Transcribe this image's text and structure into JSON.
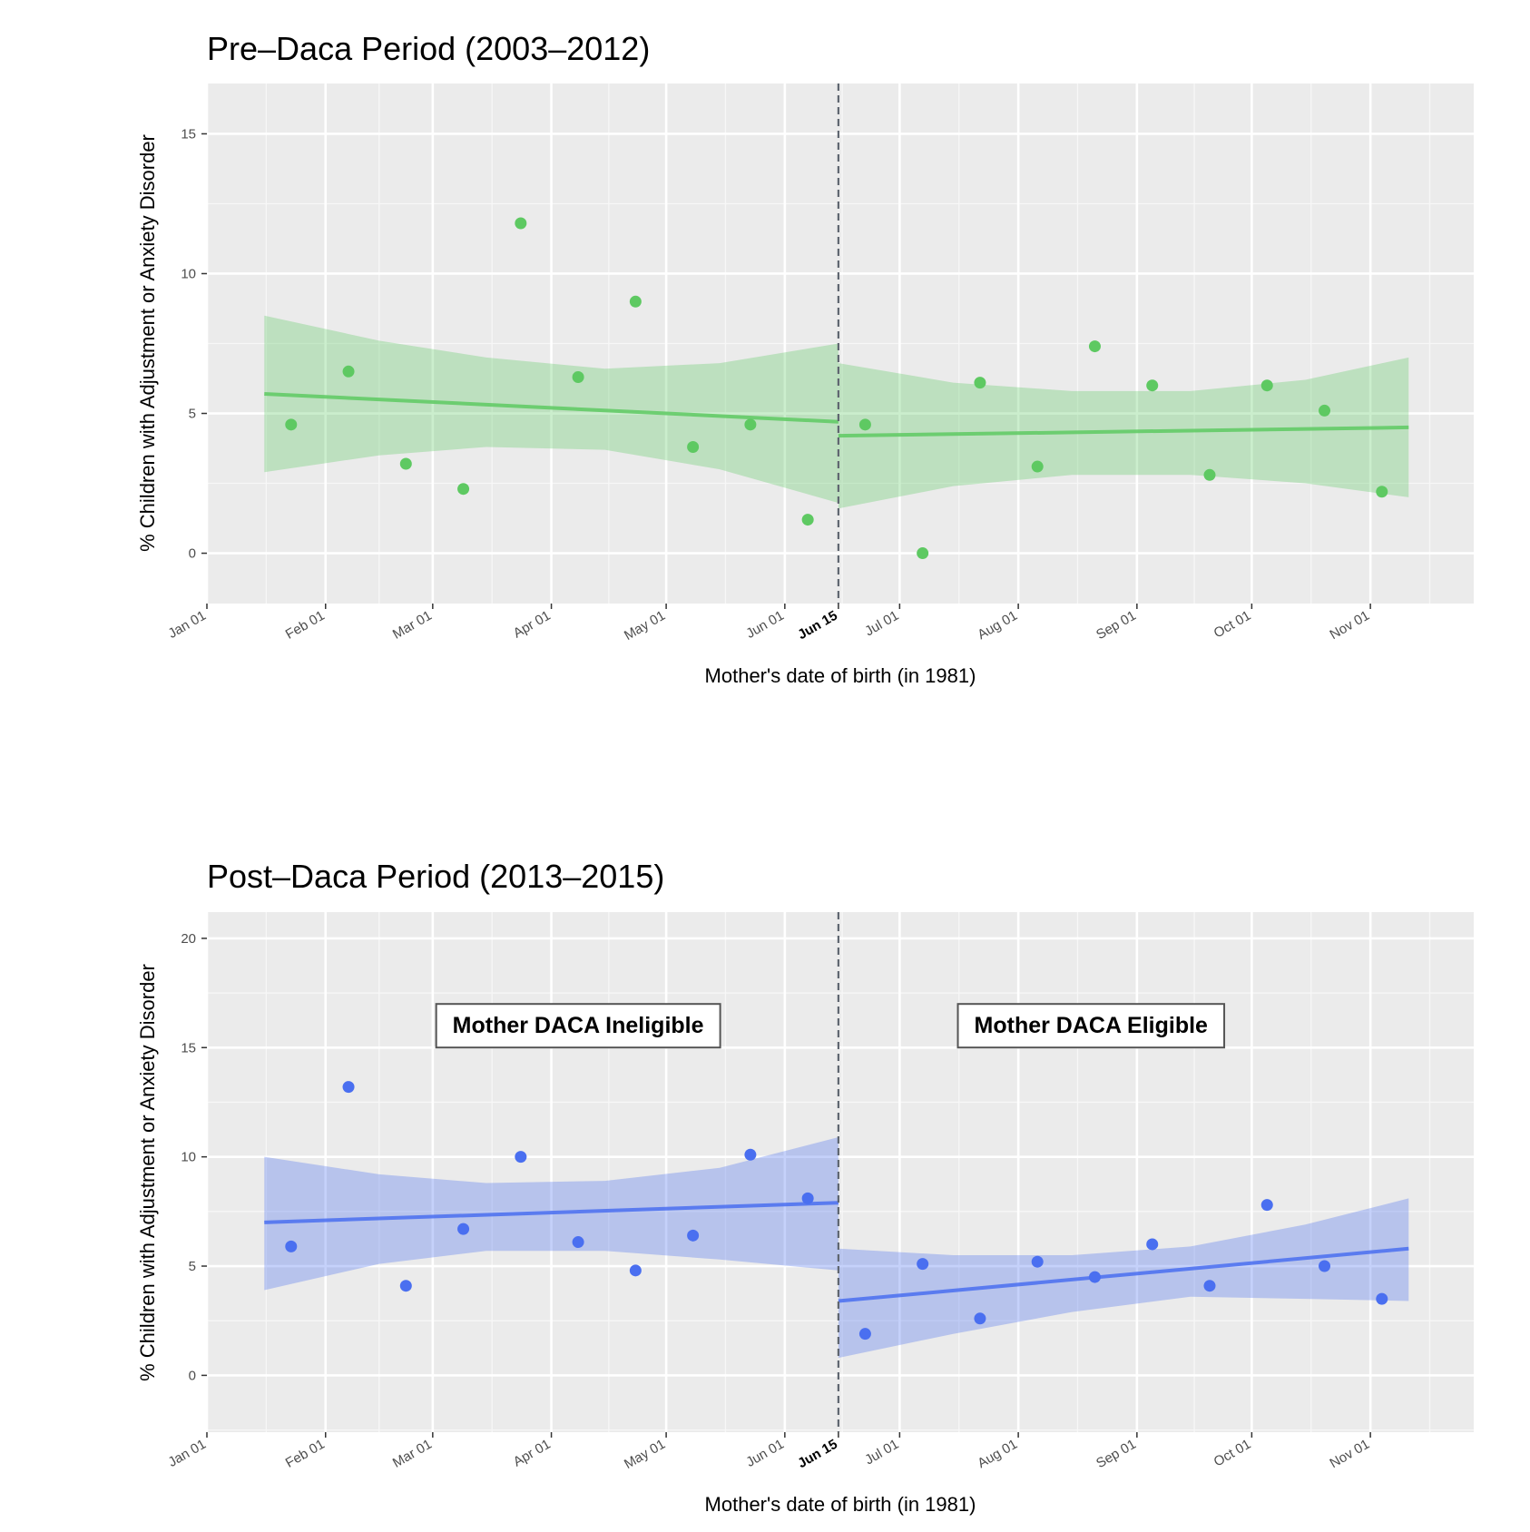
{
  "chart_data": [
    {
      "type": "scatter",
      "title": "Pre–Daca Period  (2003–2012)",
      "xlabel": "Mother's date of birth (in 1981)",
      "ylabel": "% Children with Adjustment or Anxiety Disorder",
      "ylim": [
        -1.8,
        16.8
      ],
      "yticks": [
        0,
        5,
        10,
        15
      ],
      "xlim": [
        "1981-01-01",
        "1981-11-28"
      ],
      "xticks": [
        {
          "date": "1981-01-01",
          "label": "Jan 01"
        },
        {
          "date": "1981-02-01",
          "label": "Feb 01"
        },
        {
          "date": "1981-03-01",
          "label": "Mar 01"
        },
        {
          "date": "1981-04-01",
          "label": "Apr 01"
        },
        {
          "date": "1981-05-01",
          "label": "May 01"
        },
        {
          "date": "1981-06-01",
          "label": "Jun 01"
        },
        {
          "date": "1981-06-15",
          "label": "Jun 15",
          "bold": true
        },
        {
          "date": "1981-07-01",
          "label": "Jul 01"
        },
        {
          "date": "1981-08-01",
          "label": "Aug 01"
        },
        {
          "date": "1981-09-01",
          "label": "Sep 01"
        },
        {
          "date": "1981-10-01",
          "label": "Oct 01"
        },
        {
          "date": "1981-11-01",
          "label": "Nov 01"
        }
      ],
      "cutoff": "1981-06-15",
      "grid": true,
      "color": "#5ec962",
      "points": [
        {
          "x": "1981-01-23",
          "y": 4.6
        },
        {
          "x": "1981-02-07",
          "y": 6.5
        },
        {
          "x": "1981-02-22",
          "y": 3.2
        },
        {
          "x": "1981-03-09",
          "y": 2.3
        },
        {
          "x": "1981-03-24",
          "y": 11.8
        },
        {
          "x": "1981-04-08",
          "y": 6.3
        },
        {
          "x": "1981-04-23",
          "y": 9.0
        },
        {
          "x": "1981-05-08",
          "y": 3.8
        },
        {
          "x": "1981-05-23",
          "y": 4.6
        },
        {
          "x": "1981-06-07",
          "y": 1.2
        },
        {
          "x": "1981-06-22",
          "y": 4.6
        },
        {
          "x": "1981-07-07",
          "y": 0.0
        },
        {
          "x": "1981-07-22",
          "y": 6.1
        },
        {
          "x": "1981-08-06",
          "y": 3.1
        },
        {
          "x": "1981-08-21",
          "y": 7.4
        },
        {
          "x": "1981-09-05",
          "y": 6.0
        },
        {
          "x": "1981-09-20",
          "y": 2.8
        },
        {
          "x": "1981-10-05",
          "y": 6.0
        },
        {
          "x": "1981-10-20",
          "y": 5.1
        },
        {
          "x": "1981-11-04",
          "y": 2.2
        }
      ],
      "fits": [
        {
          "x": [
            "1981-01-16",
            "1981-06-15"
          ],
          "y": [
            5.7,
            4.7
          ],
          "band_x": [
            "1981-01-16",
            "1981-02-15",
            "1981-03-15",
            "1981-04-15",
            "1981-05-15",
            "1981-06-15"
          ],
          "band_lower": [
            2.9,
            3.5,
            3.8,
            3.7,
            3.0,
            1.8
          ],
          "band_upper": [
            8.5,
            7.6,
            7.0,
            6.6,
            6.8,
            7.5
          ]
        },
        {
          "x": [
            "1981-06-15",
            "1981-11-11"
          ],
          "y": [
            4.2,
            4.5
          ],
          "band_x": [
            "1981-06-15",
            "1981-07-15",
            "1981-08-15",
            "1981-09-15",
            "1981-10-15",
            "1981-11-11"
          ],
          "band_lower": [
            1.6,
            2.4,
            2.8,
            2.8,
            2.5,
            2.0
          ],
          "band_upper": [
            6.8,
            6.1,
            5.8,
            5.8,
            6.2,
            7.0
          ]
        }
      ]
    },
    {
      "type": "scatter",
      "title": "Post–Daca Period (2013–2015)",
      "xlabel": "Mother's date of birth (in 1981)",
      "ylabel": "% Children with Adjustment or Anxiety Disorder",
      "ylim": [
        -2.6,
        21.2
      ],
      "yticks": [
        0,
        5,
        10,
        15,
        20
      ],
      "xlim": [
        "1981-01-01",
        "1981-11-28"
      ],
      "xticks": [
        {
          "date": "1981-01-01",
          "label": "Jan 01"
        },
        {
          "date": "1981-02-01",
          "label": "Feb 01"
        },
        {
          "date": "1981-03-01",
          "label": "Mar 01"
        },
        {
          "date": "1981-04-01",
          "label": "Apr 01"
        },
        {
          "date": "1981-05-01",
          "label": "May 01"
        },
        {
          "date": "1981-06-01",
          "label": "Jun 01"
        },
        {
          "date": "1981-06-15",
          "label": "Jun 15",
          "bold": true
        },
        {
          "date": "1981-07-01",
          "label": "Jul 01"
        },
        {
          "date": "1981-08-01",
          "label": "Aug 01"
        },
        {
          "date": "1981-09-01",
          "label": "Sep 01"
        },
        {
          "date": "1981-10-01",
          "label": "Oct 01"
        },
        {
          "date": "1981-11-01",
          "label": "Nov 01"
        }
      ],
      "cutoff": "1981-06-15",
      "grid": true,
      "color": "#4a6ff0",
      "annotations": [
        {
          "text": "Mother DACA Ineligible",
          "x": "1981-04-08",
          "y": 16.0
        },
        {
          "text": "Mother DACA Eligible",
          "x": "1981-08-20",
          "y": 16.0
        }
      ],
      "points": [
        {
          "x": "1981-01-23",
          "y": 5.9
        },
        {
          "x": "1981-02-07",
          "y": 13.2
        },
        {
          "x": "1981-02-22",
          "y": 4.1
        },
        {
          "x": "1981-03-09",
          "y": 6.7
        },
        {
          "x": "1981-03-24",
          "y": 10.0
        },
        {
          "x": "1981-04-08",
          "y": 6.1
        },
        {
          "x": "1981-04-23",
          "y": 4.8
        },
        {
          "x": "1981-05-08",
          "y": 6.4
        },
        {
          "x": "1981-05-23",
          "y": 10.1
        },
        {
          "x": "1981-06-07",
          "y": 8.1
        },
        {
          "x": "1981-06-22",
          "y": 1.9
        },
        {
          "x": "1981-07-07",
          "y": 5.1
        },
        {
          "x": "1981-07-22",
          "y": 2.6
        },
        {
          "x": "1981-08-06",
          "y": 5.2
        },
        {
          "x": "1981-08-21",
          "y": 4.5
        },
        {
          "x": "1981-09-05",
          "y": 6.0
        },
        {
          "x": "1981-09-20",
          "y": 4.1
        },
        {
          "x": "1981-10-05",
          "y": 7.8
        },
        {
          "x": "1981-10-20",
          "y": 5.0
        },
        {
          "x": "1981-11-04",
          "y": 3.5
        }
      ],
      "fits": [
        {
          "x": [
            "1981-01-16",
            "1981-06-15"
          ],
          "y": [
            7.0,
            7.9
          ],
          "band_x": [
            "1981-01-16",
            "1981-02-15",
            "1981-03-15",
            "1981-04-15",
            "1981-05-15",
            "1981-06-15"
          ],
          "band_lower": [
            3.9,
            5.1,
            5.7,
            5.7,
            5.3,
            4.8
          ],
          "band_upper": [
            10.0,
            9.2,
            8.8,
            8.9,
            9.5,
            10.9
          ]
        },
        {
          "x": [
            "1981-06-15",
            "1981-11-11"
          ],
          "y": [
            3.4,
            5.8
          ],
          "band_x": [
            "1981-06-15",
            "1981-07-15",
            "1981-08-15",
            "1981-09-15",
            "1981-10-15",
            "1981-11-11"
          ],
          "band_lower": [
            0.8,
            1.9,
            2.9,
            3.6,
            3.5,
            3.4
          ],
          "band_upper": [
            5.8,
            5.5,
            5.5,
            5.9,
            6.9,
            8.1
          ]
        }
      ]
    }
  ]
}
